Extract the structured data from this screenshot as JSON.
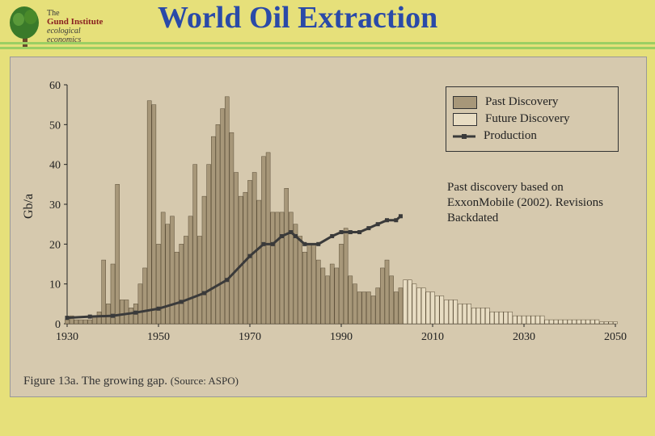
{
  "logo": {
    "line1": "The",
    "line2": "Gund Institute",
    "line3": "ecological",
    "line4": "economics"
  },
  "title": "World Oil Extraction",
  "ylabel": "Gb/a",
  "caption_main": "Figure 13a. The growing gap.",
  "caption_source": "(Source: ASPO)",
  "legend": {
    "past": "Past Discovery",
    "future": "Future Discovery",
    "prod": "Production"
  },
  "note": "Past discovery based on ExxonMobile (2002). Revisions Backdated",
  "chart": {
    "type": "bar+line",
    "xlim": [
      1930,
      2050
    ],
    "xtick_step": 20,
    "xticks": [
      "1930",
      "1950",
      "1970",
      "1990",
      "2010",
      "2030",
      "2050"
    ],
    "ylim": [
      0,
      60
    ],
    "ytick_step": 10,
    "yticks": [
      "0",
      "10",
      "20",
      "30",
      "40",
      "50",
      "60"
    ],
    "background_color": "#d6c9ae",
    "axis_color": "#222222",
    "past_bar_fill": "#a79779",
    "past_bar_stroke": "#5a4d37",
    "future_bar_fill": "#e8ddc3",
    "future_bar_stroke": "#5a4d37",
    "prod_line_color": "#3a3a3a",
    "prod_line_width": 3,
    "prod_marker": "square",
    "prod_marker_size": 5,
    "label_fontsize": 14,
    "past_discovery": [
      [
        1930,
        1
      ],
      [
        1931,
        2
      ],
      [
        1932,
        1
      ],
      [
        1933,
        1
      ],
      [
        1934,
        1
      ],
      [
        1935,
        1
      ],
      [
        1936,
        2
      ],
      [
        1937,
        3
      ],
      [
        1938,
        16
      ],
      [
        1939,
        5
      ],
      [
        1940,
        15
      ],
      [
        1941,
        35
      ],
      [
        1942,
        6
      ],
      [
        1943,
        6
      ],
      [
        1944,
        4
      ],
      [
        1945,
        5
      ],
      [
        1946,
        10
      ],
      [
        1947,
        14
      ],
      [
        1948,
        56
      ],
      [
        1949,
        55
      ],
      [
        1950,
        20
      ],
      [
        1951,
        28
      ],
      [
        1952,
        25
      ],
      [
        1953,
        27
      ],
      [
        1954,
        18
      ],
      [
        1955,
        20
      ],
      [
        1956,
        22
      ],
      [
        1957,
        27
      ],
      [
        1958,
        40
      ],
      [
        1959,
        22
      ],
      [
        1960,
        32
      ],
      [
        1961,
        40
      ],
      [
        1962,
        47
      ],
      [
        1963,
        50
      ],
      [
        1964,
        54
      ],
      [
        1965,
        57
      ],
      [
        1966,
        48
      ],
      [
        1967,
        38
      ],
      [
        1968,
        32
      ],
      [
        1969,
        33
      ],
      [
        1970,
        36
      ],
      [
        1971,
        38
      ],
      [
        1972,
        31
      ],
      [
        1973,
        42
      ],
      [
        1974,
        43
      ],
      [
        1975,
        28
      ],
      [
        1976,
        28
      ],
      [
        1977,
        28
      ],
      [
        1978,
        34
      ],
      [
        1979,
        28
      ],
      [
        1980,
        25
      ],
      [
        1981,
        22
      ],
      [
        1982,
        18
      ],
      [
        1983,
        20
      ],
      [
        1984,
        20
      ],
      [
        1985,
        16
      ],
      [
        1986,
        14
      ],
      [
        1987,
        12
      ],
      [
        1988,
        15
      ],
      [
        1989,
        14
      ],
      [
        1990,
        20
      ],
      [
        1991,
        24
      ],
      [
        1992,
        12
      ],
      [
        1993,
        10
      ],
      [
        1994,
        8
      ],
      [
        1995,
        8
      ],
      [
        1996,
        8
      ],
      [
        1997,
        7
      ],
      [
        1998,
        9
      ],
      [
        1999,
        14
      ],
      [
        2000,
        16
      ],
      [
        2001,
        12
      ],
      [
        2002,
        8
      ],
      [
        2003,
        9
      ]
    ],
    "future_discovery": [
      [
        2004,
        11
      ],
      [
        2005,
        11
      ],
      [
        2006,
        10
      ],
      [
        2007,
        9
      ],
      [
        2008,
        9
      ],
      [
        2009,
        8
      ],
      [
        2010,
        8
      ],
      [
        2011,
        7
      ],
      [
        2012,
        7
      ],
      [
        2013,
        6
      ],
      [
        2014,
        6
      ],
      [
        2015,
        6
      ],
      [
        2016,
        5
      ],
      [
        2017,
        5
      ],
      [
        2018,
        5
      ],
      [
        2019,
        4
      ],
      [
        2020,
        4
      ],
      [
        2021,
        4
      ],
      [
        2022,
        4
      ],
      [
        2023,
        3
      ],
      [
        2024,
        3
      ],
      [
        2025,
        3
      ],
      [
        2026,
        3
      ],
      [
        2027,
        3
      ],
      [
        2028,
        2
      ],
      [
        2029,
        2
      ],
      [
        2030,
        2
      ],
      [
        2031,
        2
      ],
      [
        2032,
        2
      ],
      [
        2033,
        2
      ],
      [
        2034,
        2
      ],
      [
        2035,
        1
      ],
      [
        2036,
        1
      ],
      [
        2037,
        1
      ],
      [
        2038,
        1
      ],
      [
        2039,
        1
      ],
      [
        2040,
        1
      ],
      [
        2041,
        1
      ],
      [
        2042,
        1
      ],
      [
        2043,
        1
      ],
      [
        2044,
        1
      ],
      [
        2045,
        1
      ],
      [
        2046,
        1
      ],
      [
        2047,
        0.5
      ],
      [
        2048,
        0.5
      ],
      [
        2049,
        0.5
      ],
      [
        2050,
        0.5
      ]
    ],
    "production": [
      [
        1930,
        1.5
      ],
      [
        1935,
        1.8
      ],
      [
        1940,
        2
      ],
      [
        1945,
        2.8
      ],
      [
        1950,
        3.8
      ],
      [
        1955,
        5.5
      ],
      [
        1960,
        7.7
      ],
      [
        1965,
        11
      ],
      [
        1970,
        17
      ],
      [
        1973,
        20
      ],
      [
        1975,
        20
      ],
      [
        1977,
        22
      ],
      [
        1979,
        23
      ],
      [
        1980,
        22
      ],
      [
        1982,
        20
      ],
      [
        1985,
        20
      ],
      [
        1988,
        22
      ],
      [
        1990,
        23
      ],
      [
        1992,
        23
      ],
      [
        1994,
        23
      ],
      [
        1996,
        24
      ],
      [
        1998,
        25
      ],
      [
        2000,
        26
      ],
      [
        2002,
        26
      ],
      [
        2003,
        27
      ]
    ]
  }
}
